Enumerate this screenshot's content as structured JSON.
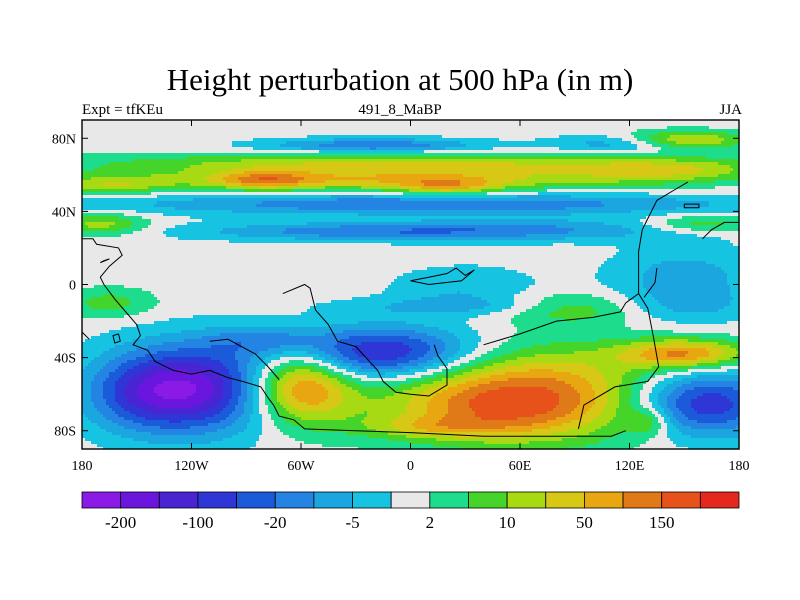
{
  "chart_data": {
    "type": "heatmap",
    "title": "Height perturbation at 500 hPa (in m)",
    "subtitle_left": "Expt = tfKEu",
    "subtitle_center": "491_8_MaBP",
    "subtitle_right": "JJA",
    "x_range": [
      -180,
      180
    ],
    "y_range": [
      -90,
      90
    ],
    "x_ticks": [
      {
        "value": -180,
        "label": "180"
      },
      {
        "value": -120,
        "label": "120W"
      },
      {
        "value": -60,
        "label": "60W"
      },
      {
        "value": 0,
        "label": "0"
      },
      {
        "value": 60,
        "label": "60E"
      },
      {
        "value": 120,
        "label": "120E"
      },
      {
        "value": 180,
        "label": "180"
      }
    ],
    "y_ticks": [
      {
        "value": 80,
        "label": "80N"
      },
      {
        "value": 40,
        "label": "40N"
      },
      {
        "value": 0,
        "label": "0"
      },
      {
        "value": -40,
        "label": "40S"
      },
      {
        "value": -80,
        "label": "80S"
      }
    ],
    "colorbar": {
      "colors": [
        "#8c1ae6",
        "#6b16de",
        "#4a23d2",
        "#2e37d6",
        "#1b5bd9",
        "#2484e3",
        "#1ba6e0",
        "#16c3e0",
        "#e8e8e8",
        "#1ddc8c",
        "#44d42a",
        "#a8da14",
        "#d6c814",
        "#e8a611",
        "#e07a18",
        "#e6521a",
        "#e4281e"
      ],
      "labels": [
        {
          "boundary": 1,
          "text": "-200"
        },
        {
          "boundary": 3,
          "text": "-100"
        },
        {
          "boundary": 5,
          "text": "-20"
        },
        {
          "boundary": 7,
          "text": "-5"
        },
        {
          "boundary": 9,
          "text": "2"
        },
        {
          "boundary": 11,
          "text": "10"
        },
        {
          "boundary": 13,
          "text": "50"
        },
        {
          "boundary": 15,
          "text": "150"
        }
      ]
    },
    "field": {
      "base_level": 8,
      "blobs": [
        {
          "lon": 0,
          "lat": 66,
          "rx": 170,
          "ry": 6,
          "amp": 3.5
        },
        {
          "lon": -20,
          "lat": 76,
          "rx": 60,
          "ry": 4,
          "amp": -3.5
        },
        {
          "lon": 150,
          "lat": 79,
          "rx": 35,
          "ry": 5,
          "amp": 4
        },
        {
          "lon": 115,
          "lat": 77,
          "rx": 35,
          "ry": 5,
          "amp": -2.5
        },
        {
          "lon": -20,
          "lat": 57,
          "rx": 140,
          "ry": 6,
          "amp": 4
        },
        {
          "lon": -80,
          "lat": 57,
          "rx": 25,
          "ry": 5,
          "amp": 3
        },
        {
          "lon": 20,
          "lat": 53,
          "rx": 28,
          "ry": 5,
          "amp": 3
        },
        {
          "lon": 140,
          "lat": 62,
          "rx": 50,
          "ry": 6,
          "amp": 2.5
        },
        {
          "lon": -165,
          "lat": 54,
          "rx": 30,
          "ry": 5,
          "amp": 2.5
        },
        {
          "lon": 10,
          "lat": 44,
          "rx": 170,
          "ry": 6,
          "amp": -3.5
        },
        {
          "lon": -30,
          "lat": 29,
          "rx": 90,
          "ry": 5,
          "amp": -3
        },
        {
          "lon": 80,
          "lat": 30,
          "rx": 80,
          "ry": 6,
          "amp": -2.5
        },
        {
          "lon": 100,
          "lat": 30,
          "rx": 40,
          "ry": 5,
          "amp": 0.5
        },
        {
          "lon": -170,
          "lat": 33,
          "rx": 25,
          "ry": 6,
          "amp": 3
        },
        {
          "lon": 160,
          "lat": 33,
          "rx": 30,
          "ry": 5,
          "amp": 2.5
        },
        {
          "lon": 150,
          "lat": 5,
          "rx": 40,
          "ry": 16,
          "amp": -2
        },
        {
          "lon": 30,
          "lat": -2,
          "rx": 40,
          "ry": 12,
          "amp": -1.5
        },
        {
          "lon": -165,
          "lat": -10,
          "rx": 25,
          "ry": 8,
          "amp": 2
        },
        {
          "lon": 90,
          "lat": -13,
          "rx": 40,
          "ry": 8,
          "amp": 2.5
        },
        {
          "lon": 30,
          "lat": -12,
          "rx": 70,
          "ry": 5,
          "amp": -1.5
        },
        {
          "lon": 150,
          "lat": -12,
          "rx": 40,
          "ry": 10,
          "amp": -1.5
        },
        {
          "lon": -120,
          "lat": -57,
          "rx": 45,
          "ry": 24,
          "amp": -7
        },
        {
          "lon": -150,
          "lat": -60,
          "rx": 30,
          "ry": 20,
          "amp": -2
        },
        {
          "lon": -15,
          "lat": -38,
          "rx": 55,
          "ry": 15,
          "amp": -6.5
        },
        {
          "lon": -80,
          "lat": -30,
          "rx": 30,
          "ry": 8,
          "amp": -2
        },
        {
          "lon": -60,
          "lat": -55,
          "rx": 28,
          "ry": 20,
          "amp": 6.5
        },
        {
          "lon": 60,
          "lat": -60,
          "rx": 75,
          "ry": 25,
          "amp": 6.5
        },
        {
          "lon": 50,
          "lat": -70,
          "rx": 50,
          "ry": 14,
          "amp": 1.5
        },
        {
          "lon": 150,
          "lat": -38,
          "rx": 35,
          "ry": 8,
          "amp": 5.5
        },
        {
          "lon": 160,
          "lat": -65,
          "rx": 40,
          "ry": 18,
          "amp": -6
        },
        {
          "lon": 130,
          "lat": -75,
          "rx": 12,
          "ry": 8,
          "amp": 2.5
        },
        {
          "lon": 10,
          "lat": -78,
          "rx": 40,
          "ry": 6,
          "amp": 2
        }
      ]
    },
    "coastlines": [
      [
        [
          -180,
          25
        ],
        [
          -174,
          25
        ],
        [
          -172,
          22
        ],
        [
          -160,
          20
        ],
        [
          -158,
          16
        ],
        [
          -165,
          10
        ],
        [
          -170,
          4
        ],
        [
          -168,
          0
        ],
        [
          -162,
          -8
        ],
        [
          -156,
          -15
        ],
        [
          -150,
          -22
        ],
        [
          -148,
          -28
        ],
        [
          -152,
          -33
        ],
        [
          -144,
          -36
        ],
        [
          -140,
          -42
        ],
        [
          -130,
          -47
        ],
        [
          -120,
          -49
        ],
        [
          -110,
          -47
        ],
        [
          -100,
          -51
        ],
        [
          -92,
          -53
        ],
        [
          -82,
          -56
        ],
        [
          -78,
          -62
        ],
        [
          -75,
          -66
        ],
        [
          -72,
          -72
        ],
        [
          -64,
          -74
        ],
        [
          -58,
          -79
        ],
        [
          -30,
          -80
        ],
        [
          0,
          -81
        ],
        [
          40,
          -83
        ],
        [
          110,
          -83
        ],
        [
          118,
          -80
        ]
      ],
      [
        [
          -70,
          -5
        ],
        [
          -58,
          0
        ],
        [
          -55,
          -2
        ],
        [
          -52,
          -14
        ],
        [
          -45,
          -22
        ],
        [
          -40,
          -31
        ],
        [
          -30,
          -34
        ],
        [
          -18,
          -47
        ],
        [
          -15,
          -53
        ],
        [
          -8,
          -59
        ],
        [
          0,
          -60
        ],
        [
          10,
          -61
        ],
        [
          20,
          -55
        ],
        [
          20,
          -46
        ],
        [
          15,
          -39
        ],
        [
          13,
          -33
        ]
      ],
      [
        [
          -110,
          -31
        ],
        [
          -100,
          -30
        ],
        [
          -85,
          -38
        ],
        [
          -78,
          -45
        ],
        [
          -72,
          -52
        ]
      ],
      [
        [
          40,
          -33
        ],
        [
          60,
          -27
        ],
        [
          80,
          -20
        ],
        [
          100,
          -18
        ],
        [
          115,
          -15
        ],
        [
          118,
          -10
        ],
        [
          125,
          -5
        ],
        [
          130,
          -13
        ],
        [
          133,
          -28
        ],
        [
          136,
          -45
        ],
        [
          130,
          -53
        ],
        [
          112,
          -56
        ],
        [
          95,
          -66
        ],
        [
          92,
          -79
        ]
      ],
      [
        [
          125,
          -5
        ],
        [
          125,
          18
        ],
        [
          127,
          30
        ],
        [
          131,
          38
        ],
        [
          135,
          46
        ],
        [
          145,
          52
        ],
        [
          152,
          56
        ]
      ],
      [
        [
          160,
          25
        ],
        [
          165,
          30
        ],
        [
          172,
          34
        ],
        [
          180,
          34
        ]
      ],
      [
        [
          128,
          -7
        ],
        [
          134,
          1
        ],
        [
          135,
          9
        ]
      ],
      [
        [
          -180,
          -26
        ],
        [
          -176,
          -30
        ]
      ],
      [
        [
          -160,
          -27
        ],
        [
          -159,
          -31
        ],
        [
          -162,
          -32
        ],
        [
          -163,
          -28
        ],
        [
          -160,
          -27
        ]
      ],
      [
        [
          0,
          2
        ],
        [
          10,
          4
        ],
        [
          20,
          6
        ],
        [
          25,
          9
        ],
        [
          30,
          5
        ],
        [
          35,
          8
        ],
        [
          28,
          2
        ],
        [
          10,
          0
        ],
        [
          0,
          2
        ]
      ],
      [
        [
          -165,
          14
        ],
        [
          -170,
          12
        ],
        [
          -168,
          13
        ],
        [
          -165,
          14
        ]
      ],
      [
        [
          150,
          44
        ],
        [
          158,
          44
        ],
        [
          158,
          42
        ],
        [
          150,
          42
        ],
        [
          150,
          44
        ]
      ]
    ]
  }
}
